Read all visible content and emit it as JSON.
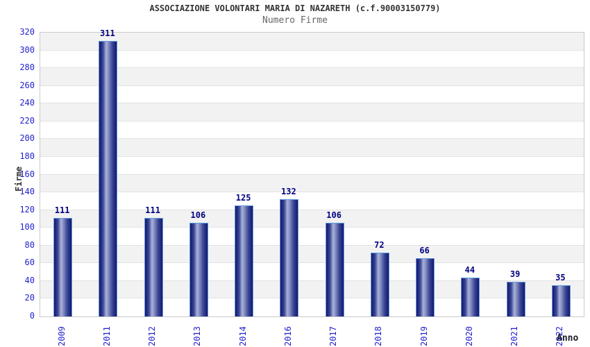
{
  "header": {
    "title": "ASSOCIAZIONE VOLONTARI MARIA DI NAZARETH (c.f.90003150779)",
    "subtitle": "Numero Firme"
  },
  "chart_data": {
    "type": "bar",
    "title": "ASSOCIAZIONE VOLONTARI MARIA DI NAZARETH (c.f.90003150779)",
    "subtitle": "Numero Firme",
    "categories": [
      "2009",
      "2011",
      "2012",
      "2013",
      "2014",
      "2016",
      "2017",
      "2018",
      "2019",
      "2020",
      "2021",
      "2022"
    ],
    "values": [
      111,
      311,
      111,
      106,
      125,
      132,
      106,
      72,
      66,
      44,
      39,
      35
    ],
    "xlabel": "Anno",
    "ylabel": "Firme",
    "ylim": [
      0,
      320
    ],
    "ytick_step": 20,
    "grid": "alternating-horizontal-bands",
    "legend_position": "none"
  },
  "colors": {
    "tick_label": "#2222cc",
    "value_label": "#000080",
    "bar_edge": "#16166b",
    "bar_mid": "#3a4797",
    "bar_highlight": "#aab3d9",
    "bar_border": "#5f9ddf",
    "band_gray": "#f2f2f2",
    "band_white": "#ffffff",
    "grid_line": "#e2e2e2",
    "plot_border": "#c9c9c9",
    "title_color": "#333333",
    "subtitle_color": "#666666",
    "axis_title_color": "#333333",
    "xlabel_title_color": "#1c1c28"
  }
}
